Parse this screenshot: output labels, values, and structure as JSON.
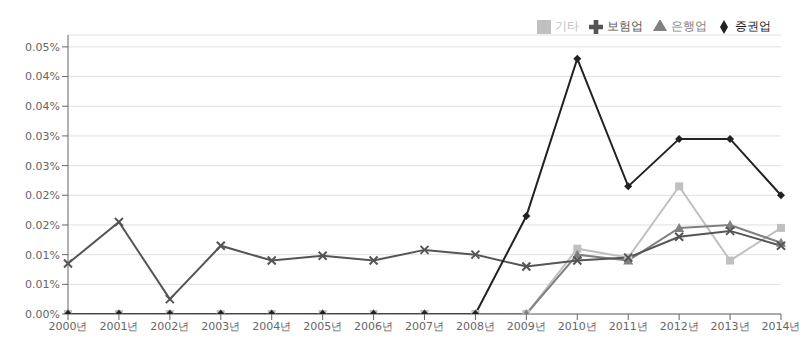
{
  "chart_data": {
    "type": "line",
    "categories": [
      "2000년",
      "2001년",
      "2002년",
      "2003년",
      "2004년",
      "2005년",
      "2006년",
      "2007년",
      "2008년",
      "2009년",
      "2010년",
      "2011년",
      "2012년",
      "2013년",
      "2014년"
    ],
    "series": [
      {
        "name": "기타",
        "color": "#c0c0c0",
        "marker": "square",
        "values": [
          0.0,
          0.0,
          0.0,
          0.0,
          0.0,
          0.0,
          0.0,
          0.0,
          0.0,
          0.0,
          0.00011,
          9.5e-05,
          0.000215,
          9e-05,
          0.000145
        ]
      },
      {
        "name": "은행업",
        "color": "#808080",
        "marker": "triangle",
        "values": [
          0.0,
          0.0,
          0.0,
          0.0,
          0.0,
          0.0,
          0.0,
          0.0,
          0.0,
          0.0,
          0.0001,
          9e-05,
          0.000145,
          0.00015,
          0.00012
        ]
      },
      {
        "name": "보험업",
        "color": "#555555",
        "marker": "x",
        "values": [
          8.5e-05,
          0.000155,
          2.5e-05,
          0.000115,
          9e-05,
          9.8e-05,
          9e-05,
          0.000108,
          0.0001,
          8e-05,
          9e-05,
          9.5e-05,
          0.00013,
          0.00014,
          0.000115
        ]
      },
      {
        "name": "증권업",
        "color": "#222222",
        "marker": "diamond",
        "values": [
          0.0,
          0.0,
          0.0,
          0.0,
          0.0,
          0.0,
          0.0,
          0.0,
          0.0,
          0.000165,
          0.00043,
          0.000215,
          0.000295,
          0.000295,
          0.0002
        ]
      }
    ],
    "ylim": [
      0.0,
      0.00047
    ],
    "yticks": [
      {
        "value": 0.0,
        "label": "0.00%"
      },
      {
        "value": 5e-05,
        "label": "0.01%"
      },
      {
        "value": 0.0001,
        "label": "0.01%"
      },
      {
        "value": 0.00015,
        "label": "0.02%"
      },
      {
        "value": 0.0002,
        "label": "0.02%"
      },
      {
        "value": 0.00025,
        "label": "0.03%"
      },
      {
        "value": 0.0003,
        "label": "0.03%"
      },
      {
        "value": 0.00035,
        "label": "0.04%"
      },
      {
        "value": 0.0004,
        "label": "0.04%"
      },
      {
        "value": 0.00045,
        "label": "0.05%"
      }
    ],
    "grid": true,
    "legend": "upper right"
  }
}
